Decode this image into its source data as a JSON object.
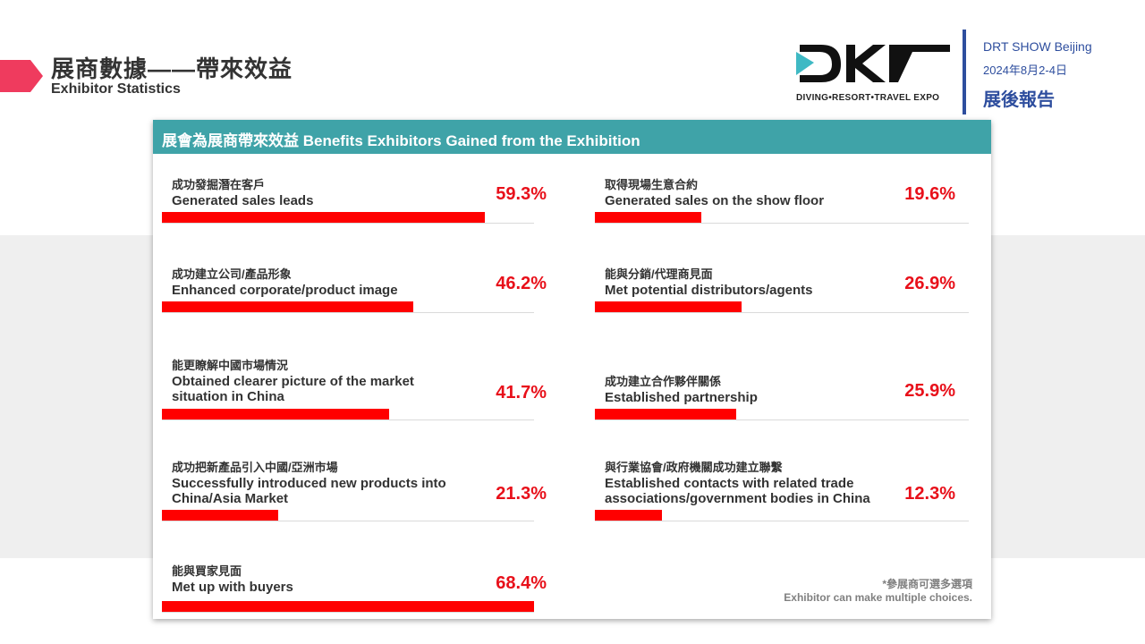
{
  "header": {
    "title_zh": "展商數據——帶來效益",
    "title_en": "Exhibitor Statistics"
  },
  "brand": {
    "logo_text": "DRT",
    "tagline": "DIVING•RESORT•TRAVEL EXPO",
    "show_name": "DRT SHOW Beijing",
    "show_date": "2024年8月2-4日",
    "report_label": "展後報告",
    "accent_color": "#2e4e9e",
    "logo_teal": "#3fb9c4"
  },
  "panel": {
    "title": "展會為展商帶來效益 Benefits Exhibitors Gained from the Exhibition",
    "header_color": "#3fa3a8"
  },
  "chart_data": {
    "type": "bar",
    "orientation": "horizontal",
    "unit": "%",
    "xlim": [
      0,
      68.4
    ],
    "bar_color": "#ff0000",
    "categories": [
      {
        "zh": "成功發掘潛在客戶",
        "en": [
          "Generated sales leads"
        ],
        "value": 59.3,
        "label": "59.3%"
      },
      {
        "zh": "成功建立公司/產品形象",
        "en": [
          "Enhanced corporate/product image"
        ],
        "value": 46.2,
        "label": "46.2%"
      },
      {
        "zh": "能更瞭解中國市場情況",
        "en": [
          "Obtained clearer picture of the market",
          "situation in China"
        ],
        "value": 41.7,
        "label": "41.7%"
      },
      {
        "zh": "成功把新產品引入中國/亞洲市場",
        "en": [
          "Successfully introduced new products into",
          "China/Asia Market"
        ],
        "value": 21.3,
        "label": "21.3%"
      },
      {
        "zh": "能與買家見面",
        "en": [
          "Met up with buyers"
        ],
        "value": 68.4,
        "label": "68.4%"
      },
      {
        "zh": "取得現場生意合約",
        "en": [
          "Generated sales on the show floor"
        ],
        "value": 19.6,
        "label": "19.6%"
      },
      {
        "zh": "能與分銷/代理商見面",
        "en": [
          "Met potential distributors/agents"
        ],
        "value": 26.9,
        "label": "26.9%"
      },
      {
        "zh": "成功建立合作夥伴關係",
        "en": [
          "Established partnership"
        ],
        "value": 25.9,
        "label": "25.9%"
      },
      {
        "zh": "與行業協會/政府機關成功建立聯繫",
        "en": [
          "Established contacts with related trade",
          "associations/government bodies in China"
        ],
        "value": 12.3,
        "label": "12.3%"
      }
    ]
  },
  "footnote": {
    "line1": "*參展商可選多選項",
    "line2": "Exhibitor can make multiple choices."
  }
}
